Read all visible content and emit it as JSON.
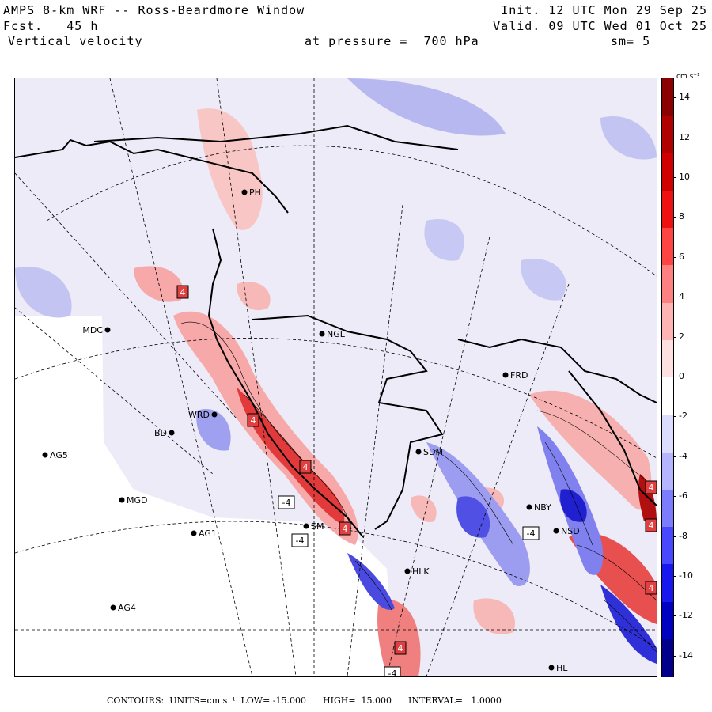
{
  "header": {
    "title": "AMPS 8-km WRF -- Ross-Beardmore Window",
    "fcst_label": "Fcst.",
    "fcst_value": "45 h",
    "field": "Vertical velocity",
    "pressure_label": "at pressure =",
    "pressure_value": "700 hPa",
    "init": "Init. 12 UTC Mon 29 Sep 25",
    "valid": "Valid. 09 UTC Wed 01 Oct 25",
    "smoothing": "sm= 5"
  },
  "colorbar": {
    "units": "cm s⁻¹",
    "ticks": [
      "14",
      "12",
      "10",
      "8",
      "6",
      "4",
      "2",
      "0",
      "-2",
      "-4",
      "-6",
      "-8",
      "-10",
      "-12",
      "-14"
    ],
    "colors": [
      "#8b0000",
      "#b00000",
      "#d00000",
      "#ee1111",
      "#ff4444",
      "#ff8080",
      "#ffb4b4",
      "#ffe0e0",
      "#ffffff",
      "#dcdcff",
      "#b4b4ff",
      "#7c7cff",
      "#4848ff",
      "#1818ee",
      "#0000c0",
      "#00008b"
    ],
    "range": [
      -15,
      15
    ]
  },
  "stations": [
    {
      "name": "MDC",
      "pos": "left"
    },
    {
      "name": "NGL",
      "pos": "right"
    },
    {
      "name": "PH",
      "pos": "right"
    },
    {
      "name": "FRD",
      "pos": "right"
    },
    {
      "name": "WRD",
      "pos": "left"
    },
    {
      "name": "BD",
      "pos": "left"
    },
    {
      "name": "AG5",
      "pos": "right"
    },
    {
      "name": "SDM",
      "pos": "right"
    },
    {
      "name": "MGD",
      "pos": "right"
    },
    {
      "name": "NBY",
      "pos": "right"
    },
    {
      "name": "AG1",
      "pos": "right"
    },
    {
      "name": "NSD",
      "pos": "right"
    },
    {
      "name": "HLK",
      "pos": "right"
    },
    {
      "name": "AG4",
      "pos": "right"
    },
    {
      "name": "HL",
      "pos": "right"
    },
    {
      "name": "SM",
      "pos": "right"
    }
  ],
  "labels": [
    {
      "text": "4",
      "kind": "pos"
    },
    {
      "text": "4",
      "kind": "pos"
    },
    {
      "text": "4",
      "kind": "pos"
    },
    {
      "text": "-4",
      "kind": "neg"
    },
    {
      "text": "-4",
      "kind": "neg"
    },
    {
      "text": "4",
      "kind": "pos"
    },
    {
      "text": "-4",
      "kind": "neg"
    },
    {
      "text": "4",
      "kind": "pos"
    },
    {
      "text": "4",
      "kind": "pos"
    },
    {
      "text": "4",
      "kind": "pos"
    },
    {
      "text": "4",
      "kind": "pos"
    },
    {
      "text": "-4",
      "kind": "neg"
    }
  ],
  "footer": {
    "contours": "CONTOURS:  UNITS=cm s⁻¹",
    "low": "LOW= -15.000",
    "high": "HIGH=  15.000",
    "interval": "INTERVAL=   1.0000"
  }
}
